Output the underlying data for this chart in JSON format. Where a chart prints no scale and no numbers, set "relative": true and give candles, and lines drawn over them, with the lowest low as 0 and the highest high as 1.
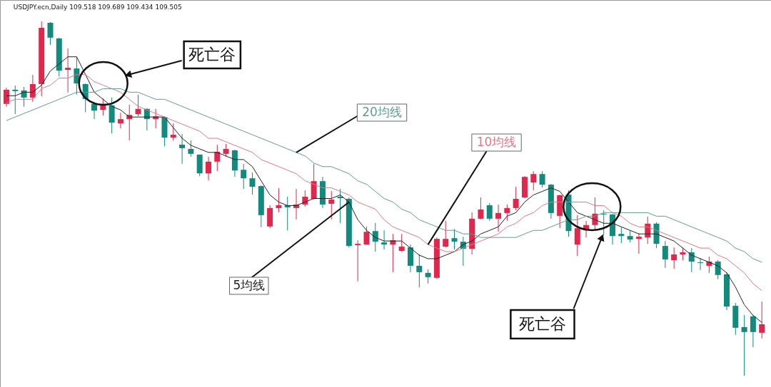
{
  "chart_data": {
    "type": "candlestick",
    "title": "USDJPY.ecn,Daily  109.518 109.689 109.434 109.505",
    "relative": true,
    "categories": [
      null,
      null,
      null,
      null,
      null,
      null,
      null,
      null,
      null,
      null,
      null,
      null,
      null,
      null,
      null,
      null,
      null,
      null,
      null,
      null,
      null,
      null,
      null,
      null,
      null,
      null,
      null,
      null,
      null,
      null,
      null,
      null,
      null,
      null,
      null,
      null,
      null,
      null,
      null,
      null,
      null,
      null,
      null,
      null,
      null,
      null,
      null,
      null,
      null,
      null,
      null,
      null,
      null,
      null,
      null,
      null,
      null,
      null,
      null,
      null,
      null,
      null,
      null,
      null,
      null,
      null,
      null,
      null,
      null,
      null,
      null,
      null,
      null,
      null,
      null,
      null,
      null,
      null,
      null,
      null,
      null,
      null,
      null,
      null,
      null,
      null,
      null
    ],
    "ohlc": [
      [
        0.767,
        0.813,
        0.759,
        0.807
      ],
      [
        0.807,
        0.819,
        0.738,
        0.803
      ],
      [
        0.805,
        0.815,
        0.759,
        0.785
      ],
      [
        0.785,
        0.849,
        0.773,
        0.823
      ],
      [
        0.823,
        1,
        0.789,
        0.982
      ],
      [
        0.996,
        0.998,
        0.934,
        0.954
      ],
      [
        0.952,
        0.954,
        0.845,
        0.861
      ],
      [
        0.863,
        0.924,
        0.799,
        0.869
      ],
      [
        0.867,
        0.899,
        0.793,
        0.825
      ],
      [
        0.823,
        0.825,
        0.744,
        0.781
      ],
      [
        0.767,
        0.773,
        0.724,
        0.748
      ],
      [
        0.75,
        0.783,
        0.734,
        0.763
      ],
      [
        0.763,
        0.785,
        0.684,
        0.714
      ],
      [
        0.712,
        0.742,
        0.698,
        0.724
      ],
      [
        0.724,
        0.765,
        0.664,
        0.736
      ],
      [
        0.738,
        0.793,
        0.732,
        0.753
      ],
      [
        0.753,
        0.755,
        0.692,
        0.724
      ],
      [
        0.724,
        0.753,
        0.698,
        0.732
      ],
      [
        0.73,
        0.732,
        0.648,
        0.672
      ],
      [
        0.672,
        0.712,
        0.664,
        0.68
      ],
      [
        0.652,
        0.682,
        0.598,
        0.642
      ],
      [
        0.64,
        0.664,
        0.618,
        0.626
      ],
      [
        0.624,
        0.624,
        0.563,
        0.571
      ],
      [
        0.571,
        0.618,
        0.551,
        0.604
      ],
      [
        0.604,
        0.652,
        0.577,
        0.632
      ],
      [
        0.626,
        0.654,
        0.618,
        0.64
      ],
      [
        0.636,
        0.638,
        0.561,
        0.579
      ],
      [
        0.581,
        0.598,
        0.527,
        0.557
      ],
      [
        0.557,
        0.573,
        0.511,
        0.533
      ],
      [
        0.535,
        0.537,
        0.419,
        0.453
      ],
      [
        0.421,
        0.481,
        0.416,
        0.473
      ],
      [
        0.473,
        0.529,
        0.461,
        0.481
      ],
      [
        0.481,
        0.505,
        0.41,
        0.475
      ],
      [
        0.473,
        0.527,
        0.441,
        0.483
      ],
      [
        0.483,
        0.523,
        0.477,
        0.505
      ],
      [
        0.499,
        0.598,
        0.497,
        0.549
      ],
      [
        0.549,
        0.561,
        0.473,
        0.483
      ],
      [
        0.485,
        0.521,
        0.441,
        0.497
      ],
      [
        0.505,
        0.527,
        0.431,
        0.501
      ],
      [
        0.499,
        0.503,
        0.362,
        0.366
      ],
      [
        0.368,
        0.382,
        0.266,
        0.372
      ],
      [
        0.37,
        0.421,
        0.37,
        0.406
      ],
      [
        0.408,
        0.431,
        0.35,
        0.378
      ],
      [
        0.376,
        0.41,
        0.356,
        0.37
      ],
      [
        0.37,
        0.4,
        0.292,
        0.382
      ],
      [
        0.352,
        0.4,
        0.35,
        0.364
      ],
      [
        0.362,
        0.37,
        0.292,
        0.31
      ],
      [
        0.31,
        0.342,
        0.249,
        0.292
      ],
      [
        0.29,
        0.3,
        0.26,
        0.278
      ],
      [
        0.276,
        0.39,
        0.272,
        0.386
      ],
      [
        0.364,
        0.437,
        0.362,
        0.386
      ],
      [
        0.388,
        0.414,
        0.356,
        0.378
      ],
      [
        0.378,
        0.392,
        0.31,
        0.358
      ],
      [
        0.358,
        0.461,
        0.342,
        0.443
      ],
      [
        0.443,
        0.503,
        0.441,
        0.469
      ],
      [
        0.481,
        0.487,
        0.437,
        0.443
      ],
      [
        0.443,
        0.483,
        0.406,
        0.459
      ],
      [
        0.459,
        0.483,
        0.437,
        0.473
      ],
      [
        0.473,
        0.533,
        0.467,
        0.499
      ],
      [
        0.503,
        0.563,
        0.501,
        0.561
      ],
      [
        0.545,
        0.577,
        0.523,
        0.569
      ],
      [
        0.569,
        0.577,
        0.531,
        0.539
      ],
      [
        0.539,
        0.541,
        0.443,
        0.459
      ],
      [
        0.451,
        0.511,
        0.416,
        0.509
      ],
      [
        0.511,
        0.523,
        0.392,
        0.408
      ],
      [
        0.37,
        0.453,
        0.338,
        0.416
      ],
      [
        0.41,
        0.437,
        0.39,
        0.425
      ],
      [
        0.425,
        0.503,
        0.41,
        0.457
      ],
      [
        0.457,
        0.467,
        0.396,
        0.455
      ],
      [
        0.455,
        0.457,
        0.37,
        0.394
      ],
      [
        0.4,
        0.419,
        0.374,
        0.394
      ],
      [
        0.394,
        0.41,
        0.376,
        0.384
      ],
      [
        0.386,
        0.402,
        0.344,
        0.392
      ],
      [
        0.39,
        0.449,
        0.372,
        0.429
      ],
      [
        0.429,
        0.433,
        0.36,
        0.372
      ],
      [
        0.366,
        0.38,
        0.304,
        0.328
      ],
      [
        0.326,
        0.362,
        0.302,
        0.342
      ],
      [
        0.342,
        0.362,
        0.326,
        0.348
      ],
      [
        0.348,
        0.36,
        0.292,
        0.322
      ],
      [
        0.32,
        0.332,
        0.298,
        0.318
      ],
      [
        0.31,
        0.336,
        0.29,
        0.322
      ],
      [
        0.322,
        0.326,
        0.272,
        0.284
      ],
      [
        0.286,
        0.292,
        0.185,
        0.195
      ],
      [
        0.197,
        0.205,
        0.115,
        0.135
      ],
      [
        0.137,
        0.171,
        0,
        0.123
      ],
      [
        0.167,
        0.171,
        0.08,
        0.123
      ],
      [
        0.121,
        0.209,
        0.105,
        0.145
      ]
    ],
    "colors": [
      "#e0284e",
      "#138a7e",
      "#138a7e",
      "#e0284e",
      "#e0284e",
      "#138a7e",
      "#138a7e",
      "#e0284e",
      "#138a7e",
      "#138a7e",
      "#138a7e",
      "#e0284e",
      "#138a7e",
      "#e0284e",
      "#e0284e",
      "#e0284e",
      "#138a7e",
      "#e0284e",
      "#138a7e",
      "#e0284e",
      "#138a7e",
      "#138a7e",
      "#138a7e",
      "#e0284e",
      "#e0284e",
      "#e0284e",
      "#138a7e",
      "#138a7e",
      "#138a7e",
      "#138a7e",
      "#e0284e",
      "#e0284e",
      "#138a7e",
      "#e0284e",
      "#e0284e",
      "#e0284e",
      "#138a7e",
      "#e0284e",
      "#138a7e",
      "#138a7e",
      "#e0284e",
      "#e0284e",
      "#138a7e",
      "#138a7e",
      "#e0284e",
      "#e0284e",
      "#138a7e",
      "#138a7e",
      "#138a7e",
      "#e0284e",
      "#e0284e",
      "#138a7e",
      "#138a7e",
      "#e0284e",
      "#e0284e",
      "#138a7e",
      "#e0284e",
      "#e0284e",
      "#e0284e",
      "#e0284e",
      "#e0284e",
      "#138a7e",
      "#138a7e",
      "#e0284e",
      "#138a7e",
      "#e0284e",
      "#e0284e",
      "#e0284e",
      "#138a7e",
      "#138a7e",
      "#138a7e",
      "#138a7e",
      "#e0284e",
      "#e0284e",
      "#138a7e",
      "#138a7e",
      "#e0284e",
      "#e0284e",
      "#138a7e",
      "#138a7e",
      "#e0284e",
      "#138a7e",
      "#138a7e",
      "#138a7e",
      "#138a7e",
      "#138a7e",
      "#e0284e"
    ],
    "series": [
      {
        "name": "5均线",
        "type": "line",
        "color": "#222222",
        "values": [
          0.79,
          0.79,
          0.8,
          0.8,
          0.82,
          0.86,
          0.88,
          0.9,
          0.9,
          0.85,
          0.8,
          0.78,
          0.76,
          0.75,
          0.73,
          0.73,
          0.73,
          0.73,
          0.73,
          0.7,
          0.67,
          0.65,
          0.64,
          0.63,
          0.63,
          0.62,
          0.61,
          0.61,
          0.59,
          0.55,
          0.51,
          0.49,
          0.48,
          0.48,
          0.49,
          0.5,
          0.5,
          0.5,
          0.51,
          0.49,
          0.44,
          0.41,
          0.39,
          0.38,
          0.38,
          0.38,
          0.36,
          0.34,
          0.33,
          0.33,
          0.34,
          0.35,
          0.37,
          0.38,
          0.4,
          0.41,
          0.42,
          0.45,
          0.46,
          0.49,
          0.51,
          0.52,
          0.53,
          0.52,
          0.49,
          0.46,
          0.45,
          0.44,
          0.43,
          0.43,
          0.42,
          0.41,
          0.4,
          0.4,
          0.4,
          0.39,
          0.38,
          0.36,
          0.34,
          0.33,
          0.32,
          0.31,
          0.29,
          0.25,
          0.2,
          0.17,
          0.15
        ]
      },
      {
        "name": "10均线",
        "type": "line",
        "color": "#e0788a",
        "values": [
          0.77,
          0.78,
          0.78,
          0.78,
          0.81,
          0.82,
          0.84,
          0.84,
          0.85,
          0.85,
          0.83,
          0.82,
          0.81,
          0.8,
          0.78,
          0.76,
          0.75,
          0.74,
          0.73,
          0.72,
          0.71,
          0.7,
          0.69,
          0.67,
          0.67,
          0.66,
          0.65,
          0.64,
          0.63,
          0.61,
          0.6,
          0.59,
          0.58,
          0.57,
          0.55,
          0.54,
          0.53,
          0.53,
          0.52,
          0.51,
          0.49,
          0.48,
          0.47,
          0.44,
          0.42,
          0.41,
          0.4,
          0.39,
          0.37,
          0.36,
          0.35,
          0.35,
          0.36,
          0.37,
          0.38,
          0.39,
          0.4,
          0.42,
          0.43,
          0.45,
          0.46,
          0.48,
          0.49,
          0.49,
          0.49,
          0.49,
          0.49,
          0.48,
          0.48,
          0.46,
          0.45,
          0.43,
          0.42,
          0.42,
          0.41,
          0.4,
          0.39,
          0.38,
          0.37,
          0.36,
          0.36,
          0.34,
          0.33,
          0.31,
          0.29,
          0.26,
          0.24
        ]
      },
      {
        "name": "20均线",
        "type": "line",
        "color": "#5f9e8f",
        "values": [
          0.72,
          0.73,
          0.74,
          0.75,
          0.76,
          0.77,
          0.78,
          0.79,
          0.8,
          0.8,
          0.8,
          0.81,
          0.81,
          0.81,
          0.8,
          0.8,
          0.79,
          0.78,
          0.78,
          0.77,
          0.76,
          0.75,
          0.74,
          0.73,
          0.72,
          0.71,
          0.7,
          0.69,
          0.68,
          0.67,
          0.66,
          0.65,
          0.64,
          0.63,
          0.62,
          0.6,
          0.59,
          0.59,
          0.58,
          0.57,
          0.55,
          0.54,
          0.52,
          0.5,
          0.49,
          0.47,
          0.46,
          0.44,
          0.43,
          0.42,
          0.41,
          0.41,
          0.4,
          0.4,
          0.39,
          0.39,
          0.39,
          0.39,
          0.39,
          0.4,
          0.41,
          0.41,
          0.42,
          0.43,
          0.44,
          0.44,
          0.45,
          0.45,
          0.46,
          0.46,
          0.46,
          0.46,
          0.46,
          0.46,
          0.45,
          0.45,
          0.44,
          0.43,
          0.42,
          0.41,
          0.4,
          0.39,
          0.38,
          0.36,
          0.35,
          0.33,
          0.32
        ]
      }
    ],
    "annotations": [
      "死亡谷",
      "死亡谷"
    ]
  }
}
